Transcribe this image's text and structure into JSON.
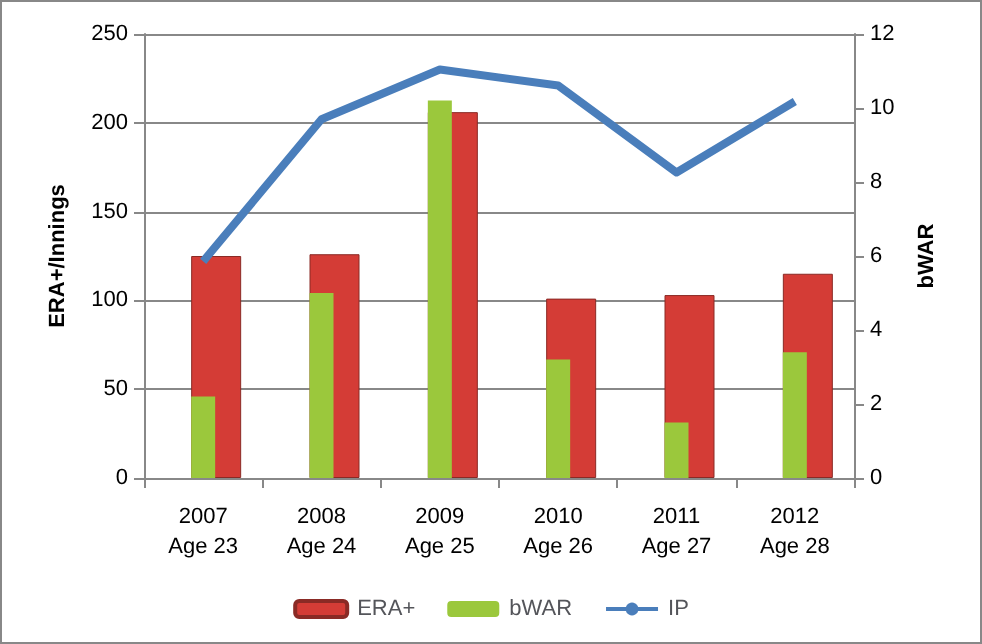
{
  "chart_data": {
    "type": "bar",
    "ylabel": "ERA+/Innings",
    "y2label": "bWAR",
    "categories": [
      "2007\nAge 23",
      "2008\nAge 24",
      "2009\nAge 25",
      "2010\nAge 26",
      "2011\nAge 27",
      "2012\nAge 28"
    ],
    "series": [
      {
        "name": "ERA+",
        "color": "#d43c36",
        "values": [
          125,
          126,
          206,
          101,
          103,
          115
        ]
      },
      {
        "name": "bWAR",
        "color": "#9bc83c",
        "axis": "y2",
        "values": [
          2.2,
          5.0,
          10.2,
          3.2,
          1.5,
          3.4
        ]
      },
      {
        "name": "IP",
        "type": "line",
        "color": "#4a7ebb",
        "values": [
          122,
          202,
          230,
          221,
          172,
          212
        ]
      }
    ],
    "ylim": [
      0,
      250
    ],
    "yticks": [
      0,
      50,
      100,
      150,
      200,
      250
    ],
    "y2lim": [
      0,
      12
    ],
    "y2ticks": [
      0,
      2,
      4,
      6,
      8,
      10,
      12
    ],
    "grid": "y",
    "legend": "bottom",
    "marker": "none"
  }
}
